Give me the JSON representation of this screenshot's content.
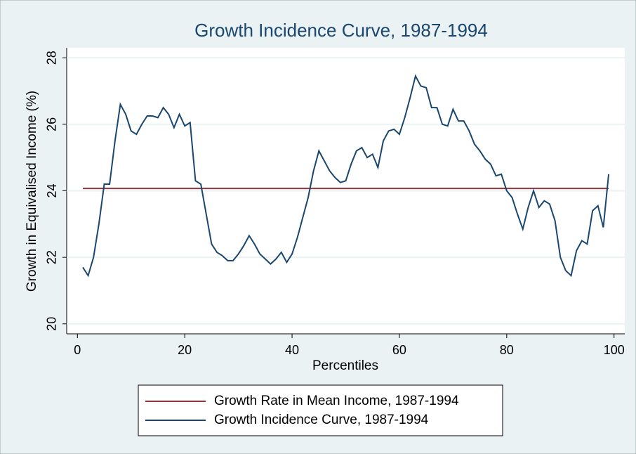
{
  "chart_data": {
    "type": "line",
    "title": "Growth Incidence Curve, 1987-1994",
    "x_label": "Percentiles",
    "y_label": "Growth in Equivalised Income (%)",
    "xlim": [
      -2,
      102
    ],
    "ylim": [
      19.7,
      28.3
    ],
    "xticks": [
      0,
      20,
      40,
      60,
      80,
      100
    ],
    "yticks": [
      20,
      22,
      24,
      26,
      28
    ],
    "grid": true,
    "legend": "bottom",
    "series": [
      {
        "name": "Growth Rate in Mean Income, 1987-1994",
        "color": "#90353b",
        "x": [
          1,
          99
        ],
        "values": [
          24.07,
          24.07
        ]
      },
      {
        "name": "Growth Incidence Curve, 1987-1994",
        "color": "#1a476f",
        "x": [
          1,
          2,
          3,
          4,
          5,
          6,
          7,
          8,
          9,
          10,
          11,
          12,
          13,
          14,
          15,
          16,
          17,
          18,
          19,
          20,
          21,
          22,
          23,
          24,
          25,
          26,
          27,
          28,
          29,
          30,
          31,
          32,
          33,
          34,
          35,
          36,
          37,
          38,
          39,
          40,
          41,
          42,
          43,
          44,
          45,
          46,
          47,
          48,
          49,
          50,
          51,
          52,
          53,
          54,
          55,
          56,
          57,
          58,
          59,
          60,
          61,
          62,
          63,
          64,
          65,
          66,
          67,
          68,
          69,
          70,
          71,
          72,
          73,
          74,
          75,
          76,
          77,
          78,
          79,
          80,
          81,
          82,
          83,
          84,
          85,
          86,
          87,
          88,
          89,
          90,
          91,
          92,
          93,
          94,
          95,
          96,
          97,
          98,
          99
        ],
        "values": [
          21.7,
          21.45,
          22.0,
          23.0,
          24.2,
          24.2,
          25.5,
          26.6,
          26.3,
          25.8,
          25.7,
          26.0,
          26.25,
          26.25,
          26.2,
          26.5,
          26.3,
          25.9,
          26.3,
          25.95,
          26.05,
          24.3,
          24.2,
          23.3,
          22.4,
          22.15,
          22.05,
          21.9,
          21.9,
          22.1,
          22.35,
          22.65,
          22.4,
          22.1,
          21.95,
          21.8,
          21.95,
          22.15,
          21.85,
          22.1,
          22.6,
          23.2,
          23.8,
          24.6,
          25.2,
          24.9,
          24.6,
          24.4,
          24.25,
          24.3,
          24.8,
          25.2,
          25.3,
          25.0,
          25.1,
          24.7,
          25.5,
          25.8,
          25.85,
          25.7,
          26.2,
          26.8,
          27.45,
          27.15,
          27.1,
          26.5,
          26.5,
          26.0,
          25.95,
          26.45,
          26.1,
          26.1,
          25.8,
          25.4,
          25.2,
          24.95,
          24.8,
          24.45,
          24.5,
          24.0,
          23.8,
          23.3,
          22.85,
          23.5,
          24.0,
          23.5,
          23.7,
          23.6,
          23.1,
          22.0,
          21.6,
          21.45,
          22.2,
          22.5,
          22.4,
          23.4,
          23.55,
          22.9,
          24.5
        ]
      }
    ]
  }
}
